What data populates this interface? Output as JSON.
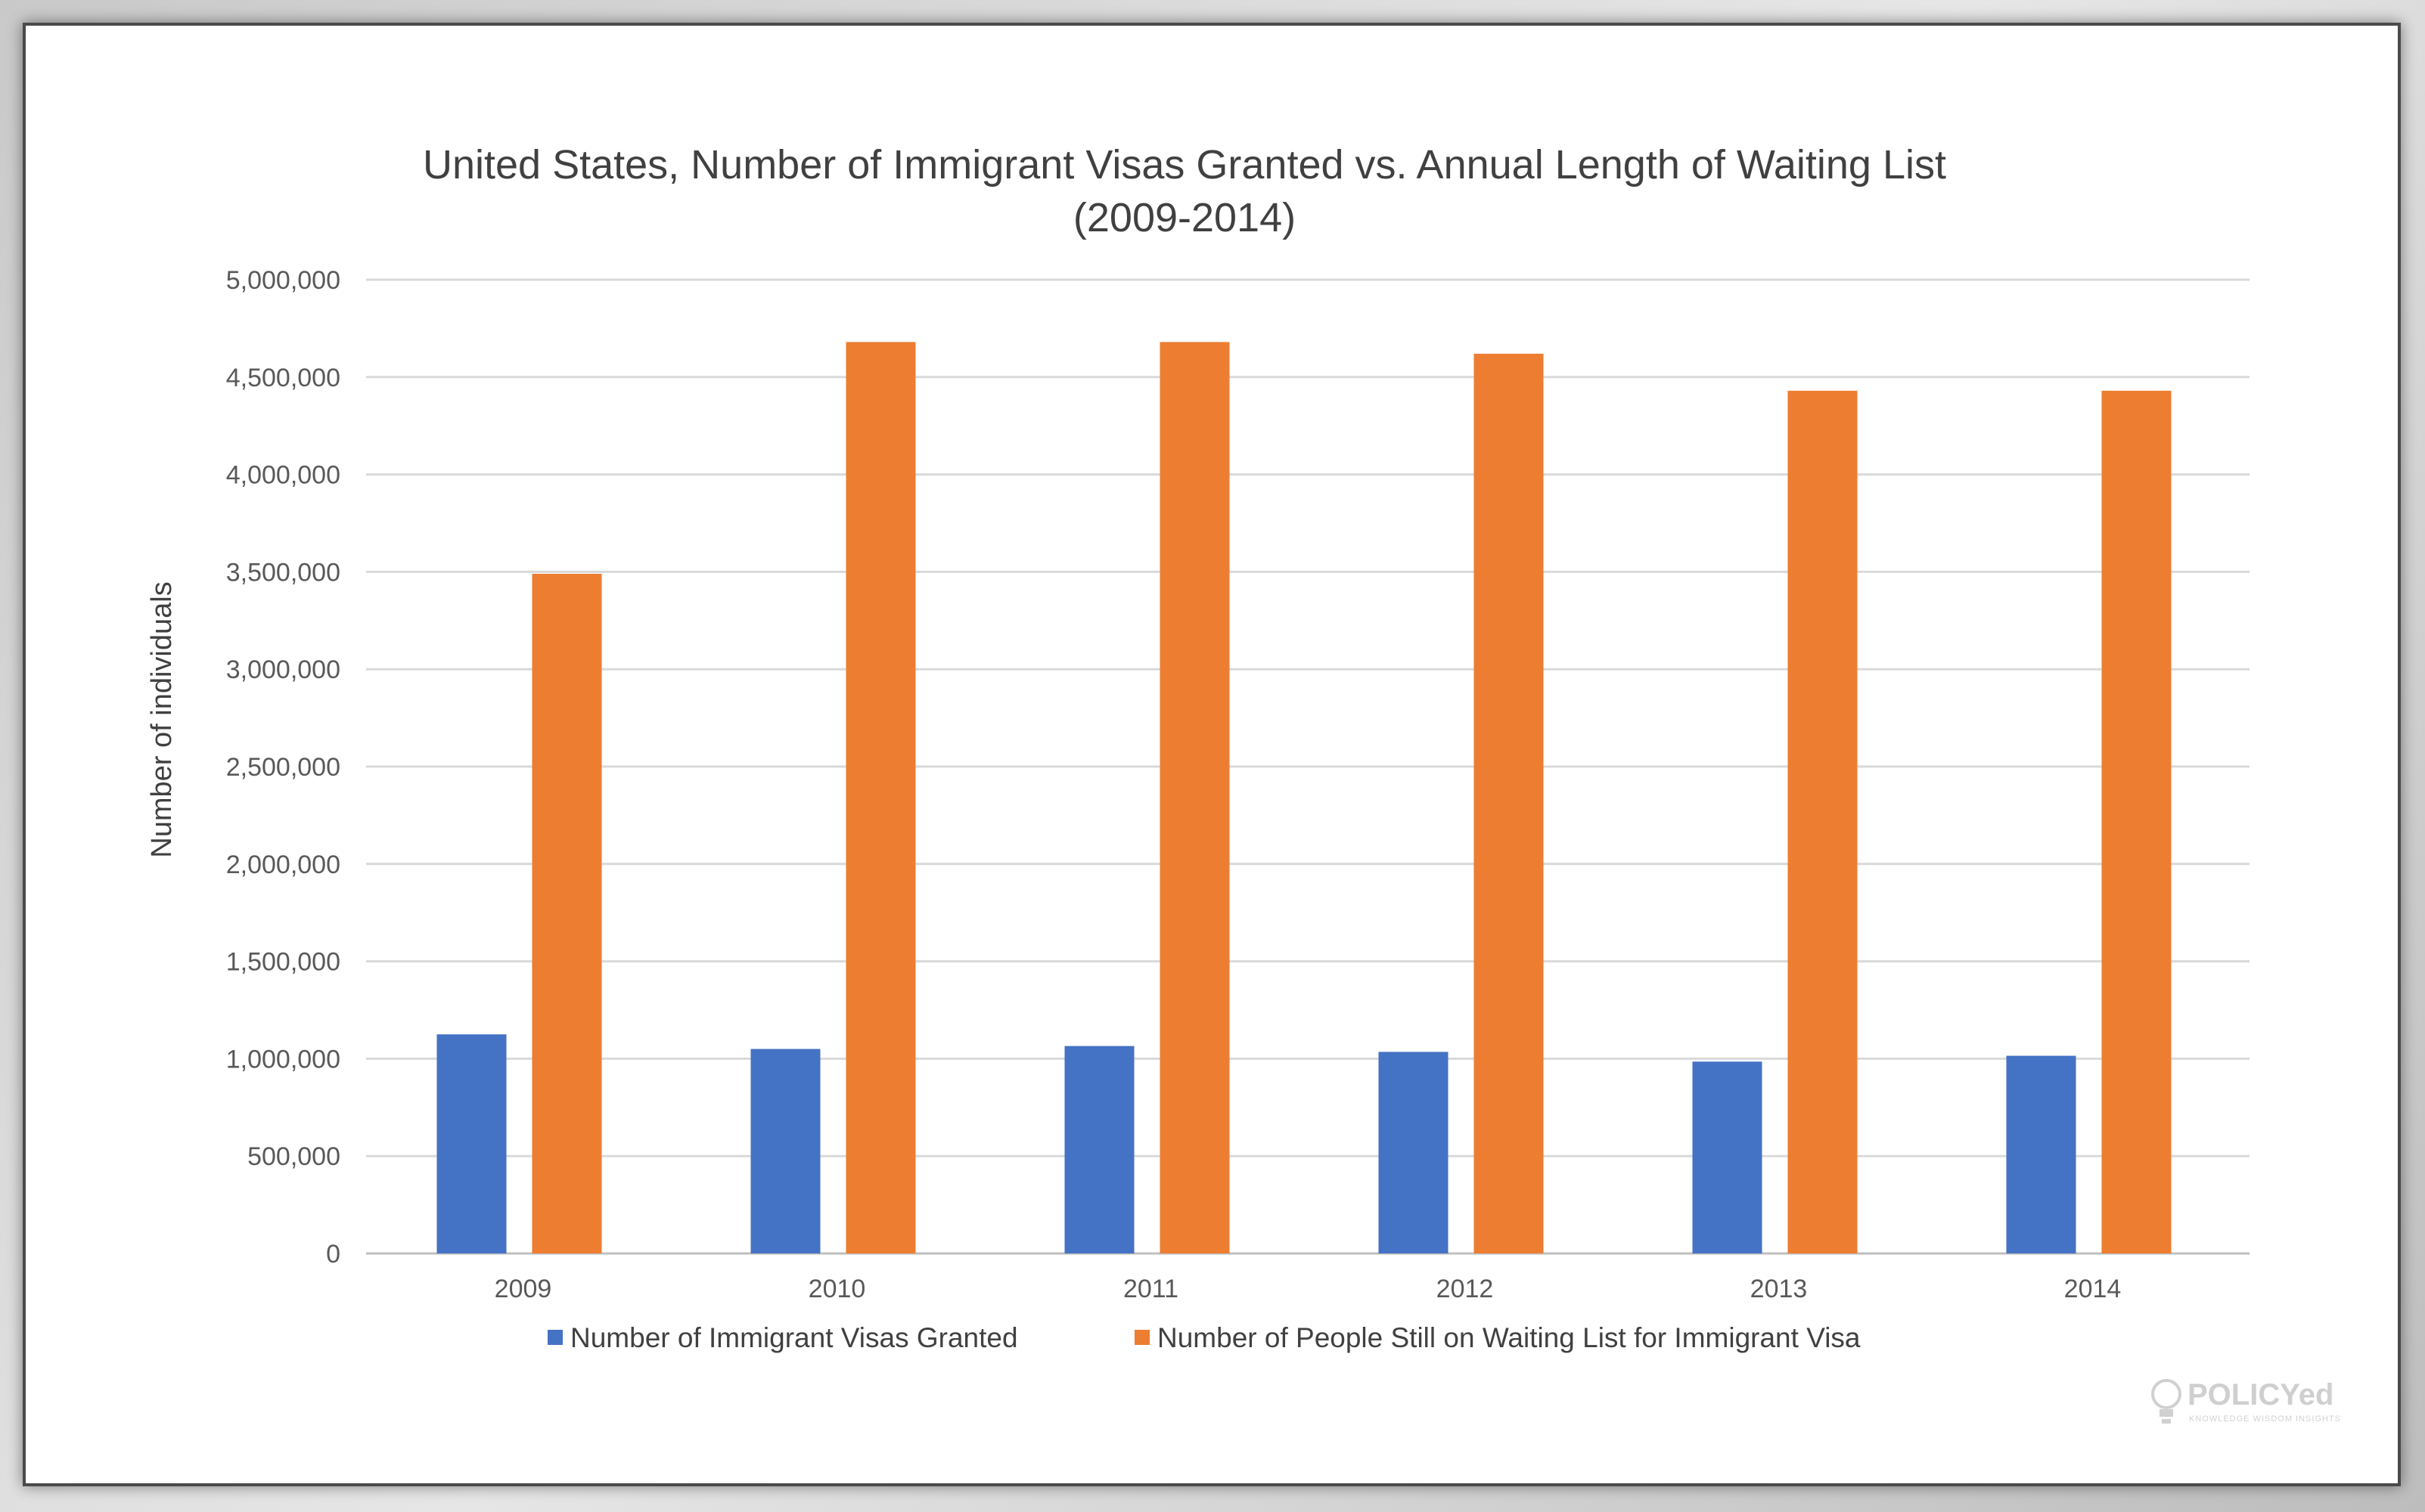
{
  "chart_data": {
    "type": "bar",
    "title_line1": "United States, Number of Immigrant Visas Granted vs. Annual Length of Waiting List",
    "title_line2": "(2009-2014)",
    "ylabel": "Number of individuals",
    "ylim": [
      0,
      5000000
    ],
    "yticks": [
      "0",
      "500,000",
      "1,000,000",
      "1,500,000",
      "2,000,000",
      "2,500,000",
      "3,000,000",
      "3,500,000",
      "4,000,000",
      "4,500,000",
      "5,000,000"
    ],
    "ytick_values": [
      0,
      500000,
      1000000,
      1500000,
      2000000,
      2500000,
      3000000,
      3500000,
      4000000,
      4500000,
      5000000
    ],
    "categories": [
      "2009",
      "2010",
      "2011",
      "2012",
      "2013",
      "2014"
    ],
    "grid": true,
    "legend_position": "bottom",
    "series": [
      {
        "name": "Number of Immigrant Visas Granted",
        "color": "#4472C4",
        "values": [
          1125000,
          1050000,
          1065000,
          1035000,
          985000,
          1015000
        ]
      },
      {
        "name": "Number of People Still on Waiting List for Immigrant Visa",
        "color": "#ED7D31",
        "values": [
          3490000,
          4680000,
          4680000,
          4620000,
          4430000,
          4430000
        ]
      }
    ]
  },
  "watermark": {
    "brand": "POLICYed",
    "tagline": "KNOWLEDGE WISDOM INSIGHTS",
    "icon": "lightbulb-icon"
  }
}
